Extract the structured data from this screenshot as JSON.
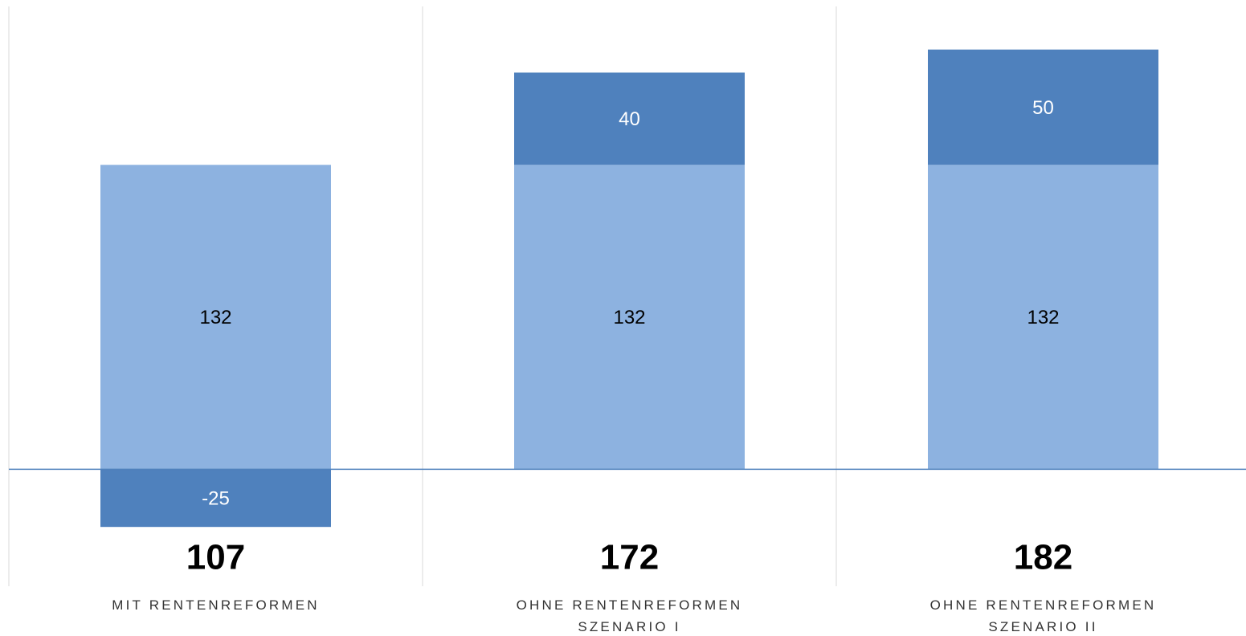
{
  "chart_data": {
    "type": "stacked_bar",
    "categories": [
      "MIT RENTENREFORMEN",
      "OHNE RENTENREFORMEN\nSZENARIO I",
      "OHNE RENTENREFORMEN\nSZENARIO II"
    ],
    "series": [
      {
        "color": "#8db2e0",
        "label_color": "#000000",
        "values": [
          132,
          132,
          132
        ]
      },
      {
        "color": "#4f81bd",
        "label_color": "#ffffff",
        "values": [
          -25,
          40,
          50
        ]
      }
    ],
    "totals": [
      107,
      172,
      182
    ],
    "ylim": [
      -50,
      200
    ]
  }
}
